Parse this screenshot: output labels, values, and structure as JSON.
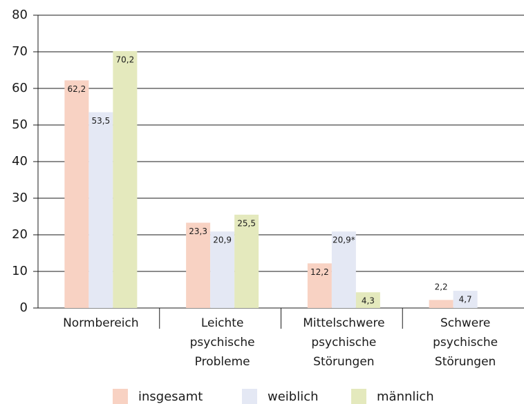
{
  "chart_data": {
    "type": "bar",
    "categories": [
      "Normbereich",
      "Leichte psychische Probleme",
      "Mittelschwere psychische Störungen",
      "Schwere psychische Störungen"
    ],
    "series": [
      {
        "name": "insgesamt",
        "color": "#f8d2c3",
        "values": [
          62.2,
          23.3,
          12.2,
          2.2
        ],
        "value_labels": [
          "62,2",
          "23,3",
          "12,2",
          "2,2"
        ]
      },
      {
        "name": "weiblich",
        "color": "#e4e8f4",
        "values": [
          53.5,
          20.9,
          20.9,
          4.7
        ],
        "value_labels": [
          "53,5",
          "20,9",
          "20,9*",
          "4,7"
        ]
      },
      {
        "name": "männlich",
        "color": "#e4e9bd",
        "values": [
          70.2,
          25.5,
          4.3,
          null
        ],
        "value_labels": [
          "70,2",
          "25,5",
          "4,3",
          null
        ]
      }
    ],
    "ylim": [
      0,
      80
    ],
    "yticks": [
      0,
      10,
      20,
      30,
      40,
      50,
      60,
      70,
      80
    ],
    "grid": true,
    "legend": "bottom"
  }
}
